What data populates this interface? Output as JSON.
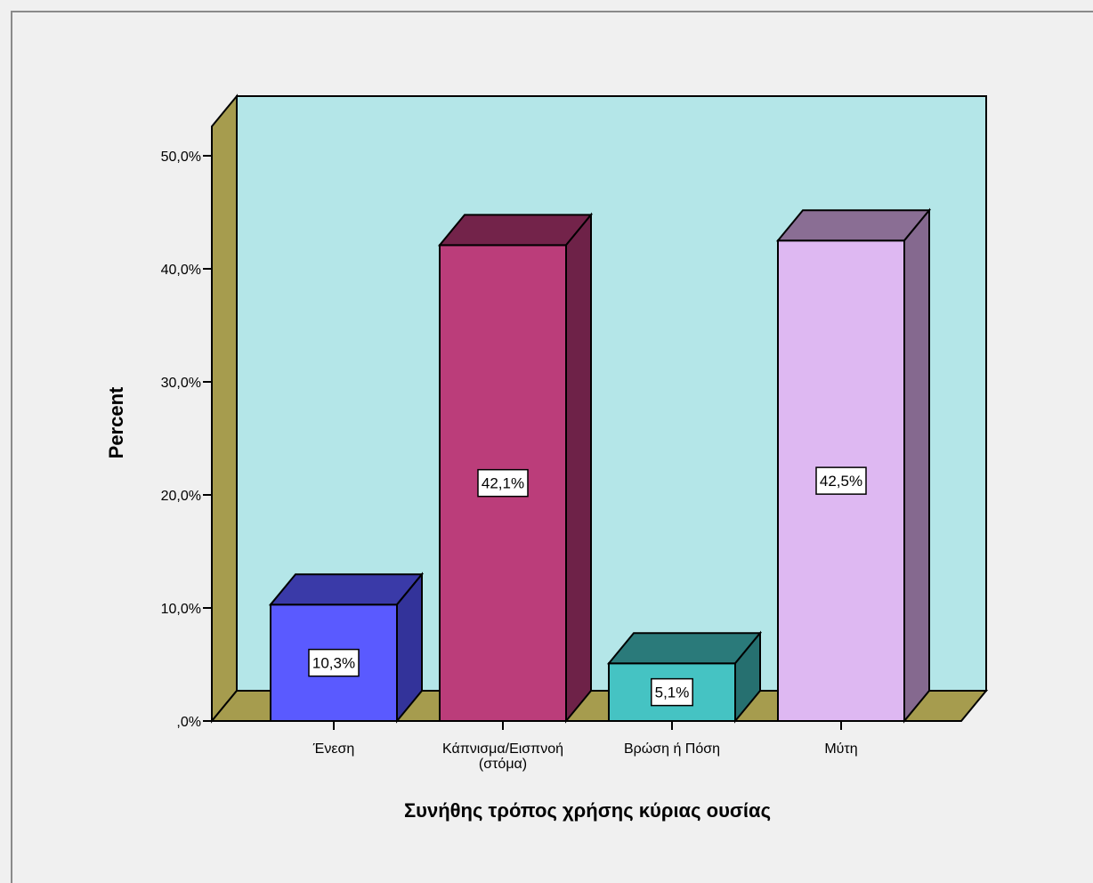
{
  "chart_data": {
    "type": "bar",
    "title": "",
    "xlabel": "Συνήθης τρόπος χρήσης κύριας ουσίας",
    "ylabel": "Percent",
    "ylim": [
      0,
      50
    ],
    "yticks": [
      {
        "value": 0,
        "label": ",0%"
      },
      {
        "value": 10,
        "label": "10,0%"
      },
      {
        "value": 20,
        "label": "20,0%"
      },
      {
        "value": 30,
        "label": "30,0%"
      },
      {
        "value": 40,
        "label": "40,0%"
      },
      {
        "value": 50,
        "label": "50,0%"
      }
    ],
    "categories": [
      "Ένεση",
      "Κάπνισμα/Εισπνοή (στόμα)",
      "Βρώση ή Πόση",
      "Μύτη"
    ],
    "category_lines": [
      [
        "Ένεση"
      ],
      [
        "Κάπνισμα/Εισπνοή",
        "(στόμα)"
      ],
      [
        "Βρώση ή Πόση"
      ],
      [
        "Μύτη"
      ]
    ],
    "values": [
      10.3,
      42.1,
      5.1,
      42.5
    ],
    "data_labels": [
      "10,3%",
      "42,1%",
      "5,1%",
      "42,5%"
    ],
    "bar_colors": [
      {
        "front": "#5a5aff",
        "top": "#3a3aa8",
        "side": "#33339a"
      },
      {
        "front": "#bb3d7a",
        "top": "#73234a",
        "side": "#6e2248"
      },
      {
        "front": "#45c3c3",
        "top": "#2a7a7a",
        "side": "#267070"
      },
      {
        "front": "#deb8f2",
        "top": "#8a6e94",
        "side": "#85698f"
      }
    ],
    "plot_colors": {
      "back_wall": "#b4e6e8",
      "floor": "#a69c4e",
      "left_wall": "#a69c4e"
    },
    "grid": false,
    "legend": "none",
    "three_d": true
  }
}
